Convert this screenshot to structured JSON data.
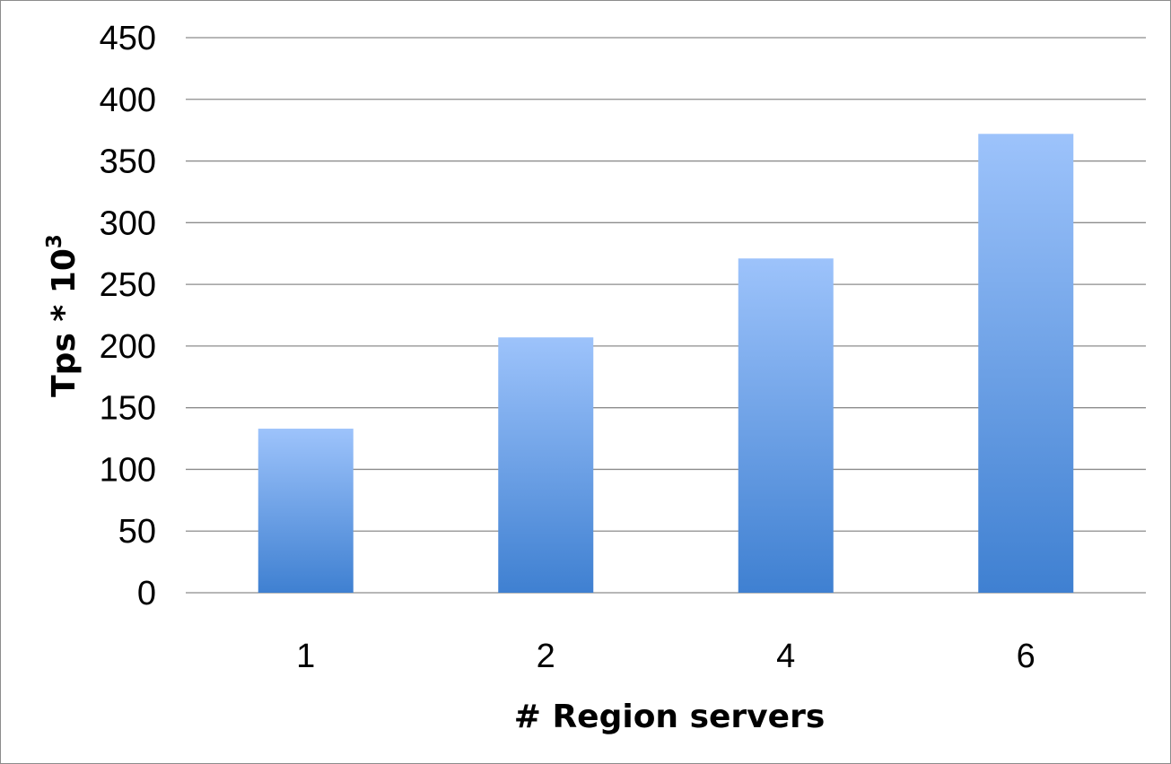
{
  "chart_data": {
    "type": "bar",
    "title": "",
    "xlabel": "# Region servers",
    "ylabel_main": "Tps * 10",
    "ylabel_sup": "3",
    "categories": [
      "1",
      "2",
      "4",
      "6"
    ],
    "values": [
      133,
      207,
      271,
      372
    ],
    "ylim": [
      0,
      450
    ],
    "yticks": [
      0,
      50,
      100,
      150,
      200,
      250,
      300,
      350,
      400,
      450
    ],
    "grid": true,
    "legend": "none",
    "colors": {
      "bar_top": "#9dc3fb",
      "bar_bottom": "#3f80d1",
      "gridline": "#8c8c8c",
      "frame": "#8c8c8c"
    }
  }
}
